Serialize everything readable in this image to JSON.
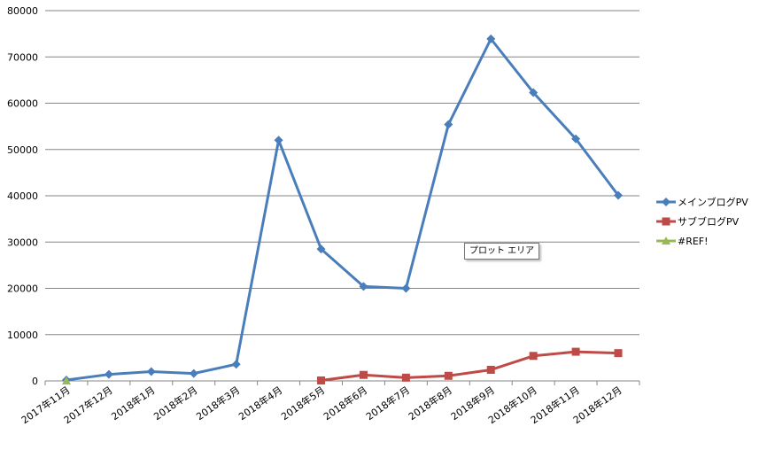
{
  "chart_data": {
    "type": "line",
    "categories": [
      "2017年11月",
      "2017年12月",
      "2018年1月",
      "2018年2月",
      "2018年3月",
      "2018年4月",
      "2018年5月",
      "2018年6月",
      "2018年7月",
      "2018年8月",
      "2018年9月",
      "2018年10月",
      "2018年11月",
      "2018年12月"
    ],
    "series": [
      {
        "name": "メインブログPV",
        "color": "#4a7ebb",
        "marker": "diamond",
        "values": [
          200,
          1400,
          2000,
          1600,
          3600,
          52000,
          28500,
          20400,
          20000,
          55400,
          73900,
          62300,
          52300,
          40100
        ]
      },
      {
        "name": "サブブログPV",
        "color": "#be4b48",
        "marker": "square",
        "values": [
          null,
          null,
          null,
          null,
          null,
          null,
          100,
          1300,
          700,
          1100,
          2400,
          5400,
          6300,
          6000
        ]
      },
      {
        "name": "#REF!",
        "color": "#98b954",
        "marker": "triangle",
        "values": [
          0,
          null,
          null,
          null,
          null,
          null,
          null,
          null,
          null,
          null,
          null,
          null,
          null,
          null
        ]
      }
    ],
    "yticks": [
      "0",
      "10000",
      "20000",
      "30000",
      "40000",
      "50000",
      "60000",
      "70000",
      "80000"
    ],
    "ylim": [
      0,
      80000
    ],
    "grid": true,
    "legend": "right"
  },
  "tooltip": "プロット エリア"
}
